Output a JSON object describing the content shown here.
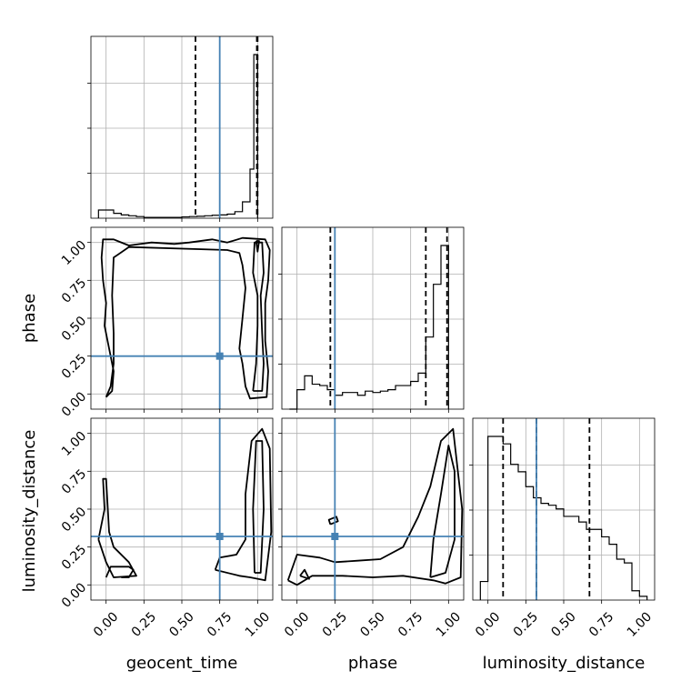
{
  "colors": {
    "truth": "#4682b4",
    "hist": "#000000",
    "contour": "#000000",
    "grid": "#b0b0b0",
    "axes": "#000000"
  },
  "params": [
    "geocent_time",
    "phase",
    "luminosity_distance"
  ],
  "tick_values": [
    0.0,
    0.25,
    0.5,
    0.75,
    1.0
  ],
  "tick_labels": [
    "0.00",
    "0.25",
    "0.50",
    "0.75",
    "1.00"
  ],
  "chart_data": {
    "type": "corner",
    "parameters": [
      "geocent_time",
      "phase",
      "luminosity_distance"
    ],
    "truths": {
      "geocent_time": 0.75,
      "phase": 0.25,
      "luminosity_distance": 0.32
    },
    "range": [
      -0.1,
      1.1
    ],
    "grid": true,
    "histograms": [
      {
        "param": "geocent_time",
        "bin_edges": [
          -0.05,
          0.0,
          0.05,
          0.1,
          0.15,
          0.2,
          0.25,
          0.3,
          0.35,
          0.4,
          0.45,
          0.5,
          0.55,
          0.6,
          0.65,
          0.7,
          0.75,
          0.8,
          0.85,
          0.9,
          0.95,
          0.975,
          1.0
        ],
        "counts": [
          0.05,
          0.05,
          0.03,
          0.02,
          0.015,
          0.01,
          0.005,
          0.005,
          0.005,
          0.005,
          0.005,
          0.008,
          0.01,
          0.012,
          0.015,
          0.018,
          0.02,
          0.025,
          0.04,
          0.1,
          0.3,
          1.0
        ],
        "quantiles": [
          0.59,
          1.0
        ],
        "median": 0.995
      },
      {
        "param": "phase",
        "bin_edges": [
          -0.05,
          0.0,
          0.05,
          0.1,
          0.15,
          0.2,
          0.25,
          0.3,
          0.35,
          0.4,
          0.45,
          0.5,
          0.55,
          0.6,
          0.65,
          0.7,
          0.75,
          0.8,
          0.85,
          0.9,
          0.95,
          1.0
        ],
        "counts": [
          0.0,
          0.07,
          0.12,
          0.09,
          0.085,
          0.07,
          0.05,
          0.06,
          0.06,
          0.05,
          0.065,
          0.06,
          0.065,
          0.07,
          0.085,
          0.085,
          0.1,
          0.13,
          0.26,
          0.45,
          0.59
        ],
        "quantiles": [
          0.22,
          0.85
        ],
        "median": 0.99
      },
      {
        "param": "luminosity_distance",
        "bin_edges": [
          -0.05,
          0.0,
          0.05,
          0.1,
          0.15,
          0.2,
          0.25,
          0.3,
          0.35,
          0.4,
          0.45,
          0.5,
          0.55,
          0.6,
          0.65,
          0.7,
          0.75,
          0.8,
          0.85,
          0.9,
          0.95,
          1.0,
          1.05
        ],
        "counts": [
          0.1,
          0.88,
          0.88,
          0.84,
          0.73,
          0.69,
          0.61,
          0.55,
          0.52,
          0.51,
          0.49,
          0.45,
          0.45,
          0.42,
          0.38,
          0.38,
          0.34,
          0.3,
          0.22,
          0.2,
          0.05,
          0.02
        ],
        "quantiles": [
          0.1,
          0.67
        ],
        "median": 0.32
      }
    ],
    "contour_panels": [
      {
        "x": "geocent_time",
        "y": "phase",
        "contours": [
          [
            [
              0.0,
              -0.02
            ],
            [
              0.04,
              0.02
            ],
            [
              0.05,
              0.15
            ],
            [
              0.03,
              0.25
            ],
            [
              0.02,
              0.3
            ],
            [
              -0.01,
              0.45
            ],
            [
              0.0,
              0.6
            ],
            [
              -0.02,
              0.75
            ],
            [
              -0.03,
              0.9
            ],
            [
              -0.02,
              1.02
            ],
            [
              0.05,
              1.02
            ],
            [
              0.15,
              0.98
            ],
            [
              0.3,
              1.0
            ],
            [
              0.45,
              0.99
            ],
            [
              0.55,
              1.0
            ],
            [
              0.7,
              1.02
            ],
            [
              0.8,
              1.0
            ],
            [
              0.9,
              1.03
            ],
            [
              1.05,
              1.02
            ],
            [
              1.08,
              0.95
            ],
            [
              1.07,
              0.75
            ],
            [
              1.05,
              0.6
            ],
            [
              1.05,
              0.35
            ],
            [
              1.07,
              0.15
            ],
            [
              1.06,
              -0.02
            ],
            [
              0.95,
              -0.03
            ],
            [
              0.92,
              0.05
            ],
            [
              0.9,
              0.2
            ],
            [
              0.88,
              0.3
            ],
            [
              0.9,
              0.5
            ],
            [
              0.92,
              0.7
            ],
            [
              0.9,
              0.85
            ],
            [
              0.88,
              0.93
            ],
            [
              0.8,
              0.95
            ],
            [
              0.15,
              0.97
            ],
            [
              0.05,
              0.9
            ],
            [
              0.04,
              0.65
            ],
            [
              0.05,
              0.4
            ],
            [
              0.05,
              0.2
            ],
            [
              0.03,
              0.05
            ],
            [
              0.0,
              -0.02
            ]
          ],
          [
            [
              0.97,
              0.02
            ],
            [
              0.99,
              0.2
            ],
            [
              1.0,
              0.45
            ],
            [
              1.0,
              0.65
            ],
            [
              0.97,
              0.8
            ],
            [
              0.98,
              1.0
            ],
            [
              1.03,
              1.0
            ],
            [
              1.04,
              0.8
            ],
            [
              1.02,
              0.65
            ],
            [
              1.03,
              0.4
            ],
            [
              1.04,
              0.2
            ],
            [
              1.03,
              0.02
            ],
            [
              0.97,
              0.02
            ]
          ],
          [
            [
              0.99,
              1.01
            ],
            [
              1.0,
              0.94
            ],
            [
              1.01,
              1.01
            ],
            [
              0.99,
              1.01
            ]
          ]
        ]
      },
      {
        "x": "geocent_time",
        "y": "luminosity_distance",
        "contours": [
          [
            [
              0.0,
              0.05
            ],
            [
              0.03,
              0.12
            ],
            [
              0.15,
              0.12
            ],
            [
              0.18,
              0.1
            ],
            [
              0.15,
              0.05
            ],
            [
              0.1,
              0.05
            ]
          ],
          [
            [
              -0.05,
              0.3
            ],
            [
              0.0,
              0.15
            ],
            [
              0.05,
              0.05
            ],
            [
              0.2,
              0.06
            ],
            [
              0.15,
              0.15
            ],
            [
              0.05,
              0.25
            ],
            [
              0.02,
              0.35
            ],
            [
              0.0,
              0.7
            ],
            [
              -0.02,
              0.7
            ],
            [
              -0.01,
              0.5
            ],
            [
              -0.05,
              0.3
            ]
          ],
          [
            [
              0.72,
              0.1
            ],
            [
              0.88,
              0.06
            ],
            [
              0.95,
              0.05
            ],
            [
              1.05,
              0.03
            ],
            [
              1.09,
              0.35
            ],
            [
              1.08,
              0.9
            ],
            [
              1.03,
              1.03
            ],
            [
              0.96,
              0.95
            ],
            [
              0.92,
              0.6
            ],
            [
              0.92,
              0.3
            ],
            [
              0.86,
              0.2
            ],
            [
              0.75,
              0.18
            ],
            [
              0.72,
              0.1
            ]
          ],
          [
            [
              0.98,
              0.08
            ],
            [
              1.02,
              0.08
            ],
            [
              1.04,
              0.5
            ],
            [
              1.03,
              0.95
            ],
            [
              0.99,
              0.95
            ],
            [
              0.97,
              0.5
            ],
            [
              0.98,
              0.08
            ]
          ]
        ]
      },
      {
        "x": "phase",
        "y": "luminosity_distance",
        "contours": [
          [
            [
              -0.06,
              0.03
            ],
            [
              0.0,
              0.2
            ],
            [
              0.15,
              0.18
            ],
            [
              0.25,
              0.15
            ],
            [
              0.4,
              0.16
            ],
            [
              0.55,
              0.17
            ],
            [
              0.7,
              0.25
            ],
            [
              0.8,
              0.45
            ],
            [
              0.88,
              0.65
            ],
            [
              0.95,
              0.95
            ],
            [
              1.03,
              1.03
            ],
            [
              1.09,
              0.5
            ],
            [
              1.08,
              0.05
            ],
            [
              0.98,
              0.01
            ],
            [
              0.9,
              0.03
            ],
            [
              0.7,
              0.06
            ],
            [
              0.5,
              0.05
            ],
            [
              0.3,
              0.06
            ],
            [
              0.1,
              0.06
            ],
            [
              0.0,
              0.0
            ],
            [
              -0.06,
              0.03
            ]
          ],
          [
            [
              0.02,
              0.06
            ],
            [
              0.08,
              0.04
            ],
            [
              0.05,
              0.1
            ],
            [
              0.02,
              0.06
            ]
          ],
          [
            [
              0.88,
              0.05
            ],
            [
              0.98,
              0.08
            ],
            [
              1.04,
              0.3
            ],
            [
              1.04,
              0.75
            ],
            [
              1.0,
              0.92
            ],
            [
              0.95,
              0.6
            ],
            [
              0.9,
              0.3
            ],
            [
              0.88,
              0.05
            ]
          ],
          [
            [
              0.22,
              0.4
            ],
            [
              0.27,
              0.42
            ],
            [
              0.26,
              0.45
            ],
            [
              0.21,
              0.43
            ],
            [
              0.22,
              0.4
            ]
          ]
        ]
      }
    ]
  }
}
